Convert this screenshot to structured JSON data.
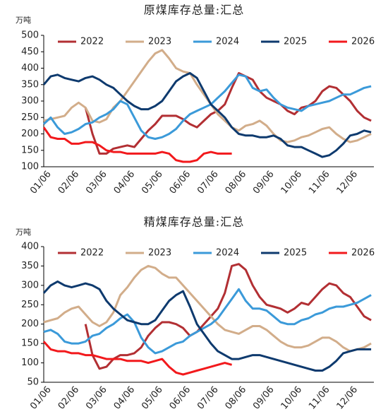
{
  "chart_data": [
    {
      "type": "line",
      "title": "原煤库存总量:汇总",
      "y_label": "万吨",
      "categories": [
        "01/06",
        null,
        null,
        null,
        "02/06",
        null,
        null,
        null,
        "03/06",
        null,
        null,
        null,
        "04/06",
        null,
        null,
        null,
        "05/06",
        null,
        null,
        null,
        "06/06",
        null,
        null,
        null,
        "07/06",
        null,
        null,
        null,
        "08/06",
        null,
        null,
        null,
        "09/06",
        null,
        null,
        null,
        "10/06",
        null,
        null,
        null,
        "11/06",
        null,
        null,
        null,
        "12/06",
        null,
        null,
        null
      ],
      "ylim": [
        100,
        500
      ],
      "yticks": [
        100,
        150,
        200,
        250,
        300,
        350,
        400,
        450,
        500
      ],
      "legend": "top",
      "series": [
        {
          "name": "2022",
          "color": "#b22f33",
          "values": [
            null,
            null,
            null,
            null,
            null,
            null,
            280,
            200,
            140,
            140,
            155,
            160,
            165,
            160,
            185,
            210,
            230,
            255,
            255,
            255,
            245,
            230,
            220,
            240,
            260,
            270,
            290,
            340,
            385,
            375,
            365,
            330,
            310,
            300,
            290,
            270,
            260,
            280,
            285,
            300,
            330,
            345,
            340,
            320,
            300,
            270,
            250,
            240
          ]
        },
        {
          "name": "2023",
          "color": "#d2ad8a",
          "values": [
            240,
            245,
            250,
            255,
            280,
            295,
            280,
            240,
            235,
            245,
            280,
            300,
            330,
            360,
            390,
            420,
            445,
            455,
            430,
            400,
            390,
            385,
            350,
            320,
            290,
            260,
            240,
            220,
            210,
            225,
            230,
            240,
            225,
            200,
            180,
            175,
            180,
            190,
            195,
            205,
            215,
            220,
            200,
            185,
            175,
            180,
            190,
            200
          ]
        },
        {
          "name": "2024",
          "color": "#3b9ad9",
          "values": [
            230,
            250,
            220,
            200,
            205,
            215,
            230,
            235,
            250,
            260,
            275,
            300,
            290,
            250,
            210,
            190,
            185,
            190,
            200,
            215,
            240,
            260,
            270,
            280,
            290,
            310,
            330,
            355,
            380,
            375,
            340,
            330,
            335,
            310,
            290,
            280,
            275,
            270,
            285,
            290,
            295,
            300,
            310,
            320,
            320,
            330,
            340,
            345
          ]
        },
        {
          "name": "2025",
          "color": "#0e3a6e",
          "values": [
            350,
            375,
            380,
            370,
            365,
            360,
            370,
            375,
            365,
            350,
            340,
            320,
            300,
            285,
            275,
            275,
            285,
            300,
            330,
            360,
            375,
            385,
            370,
            330,
            290,
            270,
            250,
            220,
            200,
            195,
            195,
            190,
            190,
            195,
            185,
            165,
            160,
            160,
            150,
            140,
            130,
            135,
            150,
            170,
            195,
            200,
            210,
            205
          ]
        },
        {
          "name": "2026",
          "color": "#f2191c",
          "values": [
            220,
            190,
            185,
            185,
            170,
            170,
            175,
            175,
            165,
            150,
            145,
            145,
            140,
            140,
            140,
            140,
            140,
            145,
            140,
            120,
            115,
            115,
            120,
            140,
            145,
            140,
            140,
            140,
            null,
            null,
            null,
            null,
            null,
            null,
            null,
            null,
            null,
            null,
            null,
            null,
            null,
            null,
            null,
            null,
            null,
            null,
            null,
            null
          ]
        }
      ]
    },
    {
      "type": "line",
      "title": "精煤库存总量:汇总",
      "y_label": "万吨",
      "categories": [
        "01/06",
        null,
        null,
        null,
        "02/06",
        null,
        null,
        null,
        "03/06",
        null,
        null,
        null,
        "04/06",
        null,
        null,
        null,
        "05/06",
        null,
        null,
        null,
        "06/06",
        null,
        null,
        null,
        "07/06",
        null,
        null,
        null,
        "08/06",
        null,
        null,
        null,
        "09/06",
        null,
        null,
        null,
        "10/06",
        null,
        null,
        null,
        "11/06",
        null,
        null,
        null,
        "12/06",
        null,
        null,
        null
      ],
      "ylim": [
        50,
        400
      ],
      "yticks": [
        50,
        100,
        150,
        200,
        250,
        300,
        350,
        400
      ],
      "legend": "top",
      "series": [
        {
          "name": "2022",
          "color": "#b22f33",
          "values": [
            null,
            null,
            null,
            null,
            null,
            null,
            200,
            120,
            85,
            90,
            110,
            120,
            120,
            125,
            140,
            170,
            190,
            205,
            205,
            200,
            190,
            170,
            180,
            200,
            220,
            240,
            280,
            350,
            355,
            340,
            300,
            270,
            250,
            245,
            240,
            230,
            240,
            255,
            250,
            270,
            290,
            305,
            300,
            280,
            270,
            245,
            220,
            210
          ]
        },
        {
          "name": "2023",
          "color": "#d2ad8a",
          "values": [
            205,
            210,
            215,
            230,
            240,
            245,
            225,
            205,
            195,
            205,
            230,
            275,
            295,
            320,
            340,
            350,
            345,
            330,
            320,
            320,
            300,
            280,
            260,
            240,
            220,
            200,
            185,
            180,
            175,
            185,
            195,
            195,
            185,
            170,
            155,
            145,
            140,
            140,
            145,
            155,
            165,
            165,
            155,
            140,
            130,
            135,
            140,
            150
          ]
        },
        {
          "name": "2024",
          "color": "#3b9ad9",
          "values": [
            180,
            185,
            175,
            155,
            150,
            150,
            155,
            170,
            175,
            190,
            200,
            215,
            225,
            205,
            165,
            140,
            125,
            130,
            140,
            150,
            155,
            170,
            180,
            190,
            200,
            215,
            240,
            265,
            290,
            260,
            240,
            240,
            235,
            220,
            205,
            200,
            200,
            210,
            215,
            225,
            230,
            240,
            245,
            245,
            250,
            255,
            265,
            275
          ]
        },
        {
          "name": "2025",
          "color": "#0e3a6e",
          "values": [
            280,
            300,
            310,
            300,
            295,
            300,
            305,
            300,
            290,
            260,
            240,
            225,
            210,
            205,
            200,
            200,
            210,
            235,
            260,
            275,
            285,
            245,
            200,
            175,
            150,
            130,
            120,
            110,
            110,
            115,
            120,
            120,
            115,
            110,
            105,
            100,
            95,
            90,
            85,
            80,
            80,
            90,
            105,
            125,
            130,
            135,
            135,
            135
          ]
        },
        {
          "name": "2026",
          "color": "#f2191c",
          "values": [
            155,
            135,
            130,
            130,
            125,
            125,
            120,
            120,
            115,
            110,
            110,
            110,
            105,
            105,
            105,
            100,
            105,
            110,
            90,
            75,
            70,
            75,
            80,
            85,
            90,
            95,
            100,
            95,
            null,
            null,
            null,
            null,
            null,
            null,
            null,
            null,
            null,
            null,
            null,
            null,
            null,
            null,
            null,
            null,
            null,
            null,
            null,
            null
          ]
        }
      ]
    }
  ]
}
